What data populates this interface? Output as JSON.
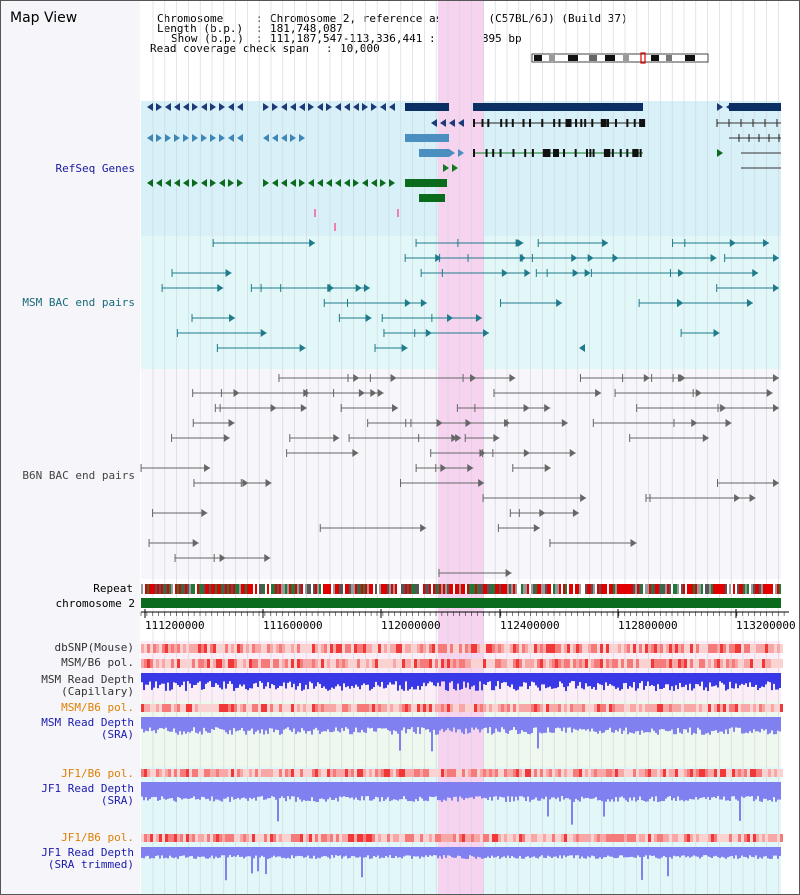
{
  "app": {
    "title": "Map View"
  },
  "info": {
    "chromosome_key": "Chromosome",
    "chromosome_val": "Chromosome 2, reference assembly (C57BL/6J) (Build 37)",
    "length_key": "Length (b.p.)",
    "length_val": "181,748,087",
    "show_key": "Show (b.p.)",
    "show_val": "111,187,547-113,336,441 : 2,148,895 bp",
    "coverage_key": "Read coverage check span",
    "coverage_val": "10,000"
  },
  "tracks": {
    "refseq": "RefSeq Genes",
    "msm_bac": "MSM BAC end pairs",
    "b6n_bac": "B6N BAC end pairs",
    "repeat": "Repeat",
    "chromosome": "chromosome 2",
    "dbsnp": "dbSNP(Mouse)",
    "msm_b6_pol": "MSM/B6 pol.",
    "msm_depth_cap_1": "MSM Read Depth",
    "msm_depth_cap_2": "(Capillary)",
    "msm_b6_pol_2": "MSM/B6 pol.",
    "msm_depth_sra_1": "MSM Read Depth",
    "msm_depth_sra_2": "(SRA)",
    "jf1_b6_pol": "JF1/B6 pol.",
    "jf1_depth_1": "JF1 Read Depth",
    "jf1_depth_2": "(SRA)",
    "jf1_b6_pol_2": "JF1/B6 pol.",
    "jf1_trim_1": "JF1 Read Depth",
    "jf1_trim_2": "(SRA trimmed)"
  },
  "positions": [
    "111200000",
    "111600000",
    "112000000",
    "112400000",
    "112800000",
    "113200000"
  ],
  "colors": {
    "refseq_bg": "#d8f0f8",
    "msm_bg": "#e2f8f8",
    "b6n_bg": "#f6f6fb",
    "highlight": "#f6d4f0",
    "chromosome": "#0b6b1d",
    "depth_blue": "#3838e6",
    "depth_light": "#8080f0"
  }
}
